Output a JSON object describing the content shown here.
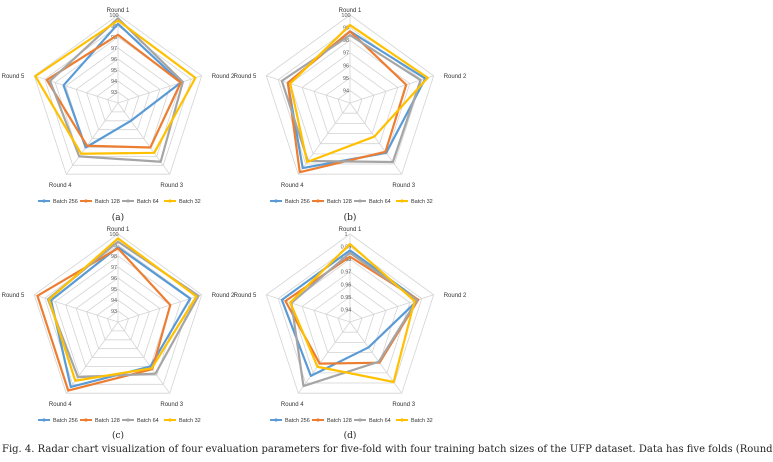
{
  "figure": {
    "caption": "Fig. 4.  Radar chart visualization of four evaluation parameters for five-fold with four training batch sizes of the UFP dataset. Data has five folds (Round"
  },
  "chart_data": [
    {
      "type": "radar",
      "panel_label": "(a)",
      "axes": [
        "Round 1",
        "Round 2",
        "Round 3",
        "Round 4",
        "Round 5"
      ],
      "rlim": [
        92,
        100
      ],
      "ticks": [
        "93",
        "94",
        "95",
        "96",
        "97",
        "98",
        "99",
        "100"
      ],
      "series": [
        {
          "name": "Batch 256",
          "color": "#5b9bd5",
          "values": [
            99.2,
            98.0,
            94.0,
            97.0,
            97.2
          ]
        },
        {
          "name": "Batch 128",
          "color": "#ed7d31",
          "values": [
            98.2,
            98.0,
            97.0,
            96.8,
            98.8
          ]
        },
        {
          "name": "Batch 64",
          "color": "#a5a5a5",
          "values": [
            99.7,
            98.2,
            98.6,
            98.0,
            98.5
          ]
        },
        {
          "name": "Batch 32",
          "color": "#ffc000",
          "values": [
            99.5,
            99.4,
            97.6,
            97.7,
            99.9
          ]
        }
      ]
    },
    {
      "type": "radar",
      "panel_label": "(b)",
      "axes": [
        "Round 1",
        "Round 2",
        "Round 3",
        "Round 4",
        "Round 5"
      ],
      "rlim": [
        93,
        100
      ],
      "ticks": [
        "94",
        "95",
        "96",
        "97",
        "98",
        "99",
        "100"
      ],
      "series": [
        {
          "name": "Batch 256",
          "color": "#5b9bd5",
          "values": [
            98.7,
            99.3,
            97.9,
            99.4,
            98.2
          ]
        },
        {
          "name": "Batch 128",
          "color": "#ed7d31",
          "values": [
            98.7,
            97.7,
            97.8,
            99.8,
            98.2
          ]
        },
        {
          "name": "Batch 64",
          "color": "#a5a5a5",
          "values": [
            98.4,
            98.9,
            98.8,
            98.7,
            98.7
          ]
        },
        {
          "name": "Batch 32",
          "color": "#ffc000",
          "values": [
            99.2,
            99.5,
            96.3,
            98.8,
            98.0
          ]
        }
      ]
    },
    {
      "type": "radar",
      "panel_label": "(c)",
      "axes": [
        "Round 1",
        "Round 2",
        "Round 3",
        "Round 4",
        "Round 5"
      ],
      "rlim": [
        92,
        100
      ],
      "ticks": [
        "93",
        "94",
        "95",
        "96",
        "97",
        "98",
        "99",
        "100"
      ],
      "series": [
        {
          "name": "Batch 256",
          "color": "#5b9bd5",
          "values": [
            98.8,
            98.9,
            97.0,
            99.3,
            98.4
          ]
        },
        {
          "name": "Batch 128",
          "color": "#ed7d31",
          "values": [
            98.7,
            97.0,
            97.3,
            99.7,
            99.7
          ]
        },
        {
          "name": "Batch 64",
          "color": "#a5a5a5",
          "values": [
            99.3,
            99.7,
            97.8,
            98.2,
            98.7
          ]
        },
        {
          "name": "Batch 32",
          "color": "#ffc000",
          "values": [
            99.6,
            99.5,
            97.2,
            98.6,
            98.6
          ]
        }
      ]
    },
    {
      "type": "radar",
      "panel_label": "(d)",
      "axes": [
        "Round 1",
        "Round 2",
        "Round 3",
        "Round 4",
        "Round 5"
      ],
      "rlim": [
        0.93,
        1.0
      ],
      "ticks": [
        "0.94",
        "0.95",
        "0.96",
        "0.97",
        "0.98",
        "0.99",
        "1"
      ],
      "series": [
        {
          "name": "Batch 256",
          "color": "#5b9bd5",
          "values": [
            0.987,
            0.987,
            0.955,
            0.983,
            0.987
          ]
        },
        {
          "name": "Batch 128",
          "color": "#ed7d31",
          "values": [
            0.982,
            0.987,
            0.97,
            0.971,
            0.984
          ]
        },
        {
          "name": "Batch 64",
          "color": "#a5a5a5",
          "values": [
            0.985,
            0.986,
            0.969,
            0.993,
            0.979
          ]
        },
        {
          "name": "Batch 32",
          "color": "#ffc000",
          "values": [
            0.992,
            0.984,
            0.989,
            0.974,
            0.98
          ]
        }
      ]
    }
  ]
}
